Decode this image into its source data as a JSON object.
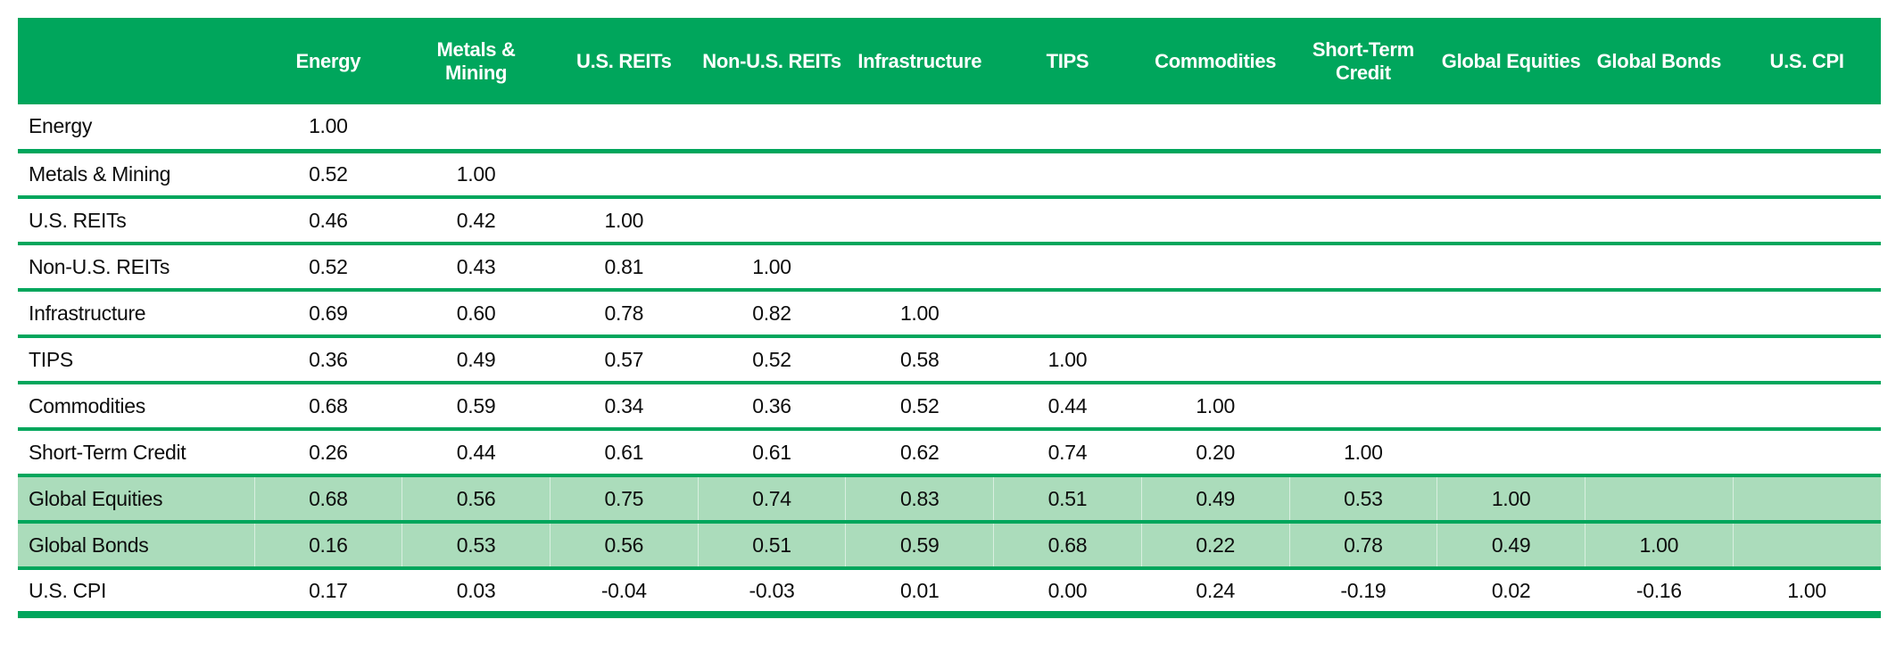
{
  "colors": {
    "header_bg": "#00a65c",
    "header_text": "#ffffff",
    "rule_green": "#00a65c",
    "highlight_bg": "#abdcbb",
    "value_text": "#0d0d0d",
    "page_bg": "#ffffff"
  },
  "chart_data": {
    "type": "table",
    "description_visible_text_only": "",
    "columns": [
      "Energy",
      "Metals & Mining",
      "U.S. REITs",
      "Non-U.S. REITs",
      "Infrastructure",
      "TIPS",
      "Commodities",
      "Short-Term Credit",
      "Global Equities",
      "Global Bonds",
      "U.S. CPI"
    ],
    "rows": [
      {
        "label": "Energy",
        "highlight": false,
        "values": [
          "1.00"
        ]
      },
      {
        "label": "Metals & Mining",
        "highlight": false,
        "values": [
          "0.52",
          "1.00"
        ]
      },
      {
        "label": "U.S. REITs",
        "highlight": false,
        "values": [
          "0.46",
          "0.42",
          "1.00"
        ]
      },
      {
        "label": "Non-U.S. REITs",
        "highlight": false,
        "values": [
          "0.52",
          "0.43",
          "0.81",
          "1.00"
        ]
      },
      {
        "label": "Infrastructure",
        "highlight": false,
        "values": [
          "0.69",
          "0.60",
          "0.78",
          "0.82",
          "1.00"
        ]
      },
      {
        "label": "TIPS",
        "highlight": false,
        "values": [
          "0.36",
          "0.49",
          "0.57",
          "0.52",
          "0.58",
          "1.00"
        ]
      },
      {
        "label": "Commodities",
        "highlight": false,
        "values": [
          "0.68",
          "0.59",
          "0.34",
          "0.36",
          "0.52",
          "0.44",
          "1.00"
        ]
      },
      {
        "label": "Short-Term Credit",
        "highlight": false,
        "values": [
          "0.26",
          "0.44",
          "0.61",
          "0.61",
          "0.62",
          "0.74",
          "0.20",
          "1.00"
        ]
      },
      {
        "label": "Global Equities",
        "highlight": true,
        "values": [
          "0.68",
          "0.56",
          "0.75",
          "0.74",
          "0.83",
          "0.51",
          "0.49",
          "0.53",
          "1.00"
        ]
      },
      {
        "label": "Global Bonds",
        "highlight": true,
        "values": [
          "0.16",
          "0.53",
          "0.56",
          "0.51",
          "0.59",
          "0.68",
          "0.22",
          "0.78",
          "0.49",
          "1.00"
        ]
      },
      {
        "label": "U.S. CPI",
        "highlight": false,
        "values": [
          "0.17",
          "0.03",
          "-0.04",
          "-0.03",
          "0.01",
          "0.00",
          "0.24",
          "-0.19",
          "0.02",
          "-0.16",
          "1.00"
        ]
      }
    ],
    "highlighted_rows": [
      "Global Equities",
      "Global Bonds"
    ],
    "layout_hints": {
      "matrix_shape": "lower-triangular",
      "header_style": "solid green band, white bold text",
      "row_rules": "green horizontal rules between rows, thicker final rule"
    }
  }
}
